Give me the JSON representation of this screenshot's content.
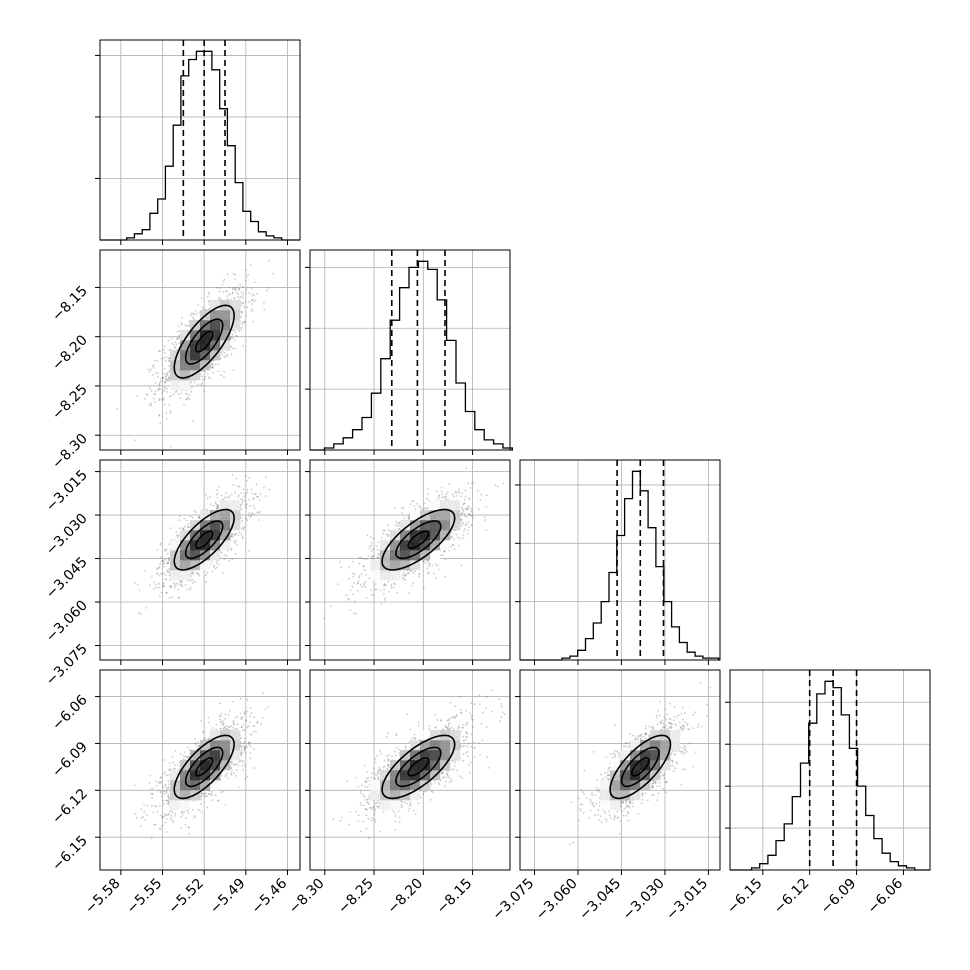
{
  "chart_data": {
    "type": "corner",
    "parameters": [
      {
        "ticks": [
          -5.58,
          -5.55,
          -5.52,
          -5.49,
          -5.46
        ],
        "tick_labels": [
          "−5.58",
          "−5.55",
          "−5.52",
          "−5.49",
          "−5.46"
        ],
        "range": [
          -5.595,
          -5.451
        ],
        "mean": -5.52,
        "sd": 0.0155,
        "quantiles": [
          -5.535,
          -5.52,
          -5.505
        ],
        "hist_counts": [
          1,
          3,
          5,
          13,
          20,
          36,
          56,
          80,
          88,
          92,
          92,
          83,
          64,
          46,
          28,
          14,
          9,
          4,
          2,
          1
        ]
      },
      {
        "ticks": [
          -8.3,
          -8.25,
          -8.2,
          -8.15
        ],
        "tick_labels": [
          "−8.30",
          "−8.25",
          "−8.20",
          "−8.15"
        ],
        "range": [
          -8.315,
          -8.112
        ],
        "mean": -8.205,
        "sd": 0.0265,
        "quantiles": [
          -8.232,
          -8.206,
          -8.178
        ],
        "hist_counts": [
          1,
          3,
          6,
          10,
          16,
          28,
          45,
          64,
          80,
          90,
          93,
          89,
          74,
          54,
          33,
          19,
          10,
          5,
          3,
          1
        ]
      },
      {
        "ticks": [
          -3.075,
          -3.06,
          -3.045,
          -3.03,
          -3.015
        ],
        "tick_labels": [
          "−3.075",
          "−3.060",
          "−3.045",
          "−3.030",
          "−3.015"
        ],
        "range": [
          -3.08,
          -3.011
        ],
        "mean": -3.0385,
        "sd": 0.0075,
        "quantiles": [
          -3.0465,
          -3.0385,
          -3.0305
        ],
        "hist_counts": [
          1,
          2,
          5,
          11,
          19,
          30,
          45,
          64,
          83,
          97,
          87,
          68,
          48,
          30,
          17,
          9,
          4,
          2,
          1,
          1
        ]
      },
      {
        "ticks": [
          -6.15,
          -6.12,
          -6.09,
          -6.06
        ],
        "tick_labels": [
          "−6.15",
          "−6.12",
          "−6.09",
          "−6.06"
        ],
        "range": [
          -6.171,
          -6.043
        ],
        "mean": -6.105,
        "sd": 0.0145,
        "quantiles": [
          -6.12,
          -6.105,
          -6.09
        ],
        "hist_counts": [
          1,
          3,
          7,
          14,
          22,
          35,
          51,
          70,
          84,
          90,
          87,
          74,
          58,
          40,
          26,
          15,
          8,
          4,
          2,
          1
        ]
      }
    ],
    "correlation": 0.72,
    "contour_levels": [
      0.39,
      0.86,
      1.39
    ],
    "grid": true,
    "quantile_lines": "dashed",
    "histogram_style": "step",
    "scatter_color": "#7f7f7f",
    "line_color": "#000000"
  }
}
